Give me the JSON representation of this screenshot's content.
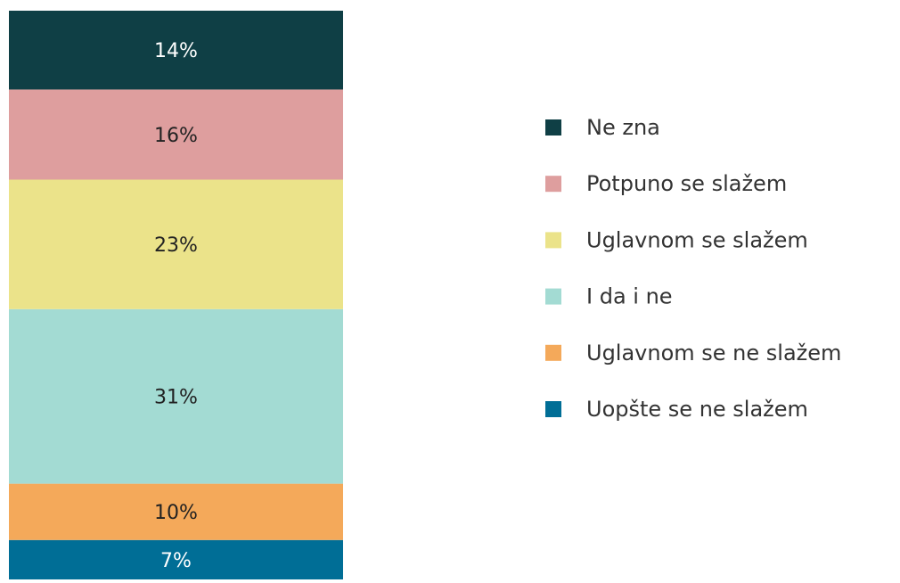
{
  "chart_data": {
    "type": "stacked_bar",
    "series": [
      {
        "name": "Uopšte se ne slažem",
        "color": "#006e96",
        "values": [
          7
        ],
        "value_labels": [
          "7%"
        ]
      },
      {
        "name": "Uglavnom se ne slažem",
        "color": "#f4a95a",
        "values": [
          10
        ],
        "value_labels": [
          "10%"
        ]
      },
      {
        "name": "I da i ne",
        "color": "#a3dbd3",
        "values": [
          31
        ],
        "value_labels": [
          "31%"
        ]
      },
      {
        "name": "Uglavnom se slažem",
        "color": "#ebe38a",
        "values": [
          23
        ],
        "value_labels": [
          "23%"
        ]
      },
      {
        "name": "Potpuno se slažem",
        "color": "#de9e9e",
        "values": [
          16
        ],
        "value_labels": [
          "16%"
        ]
      },
      {
        "name": "Ne zna",
        "color": "#0f3f45",
        "values": [
          14
        ],
        "value_labels": [
          "14%"
        ]
      }
    ],
    "legend": "right"
  }
}
